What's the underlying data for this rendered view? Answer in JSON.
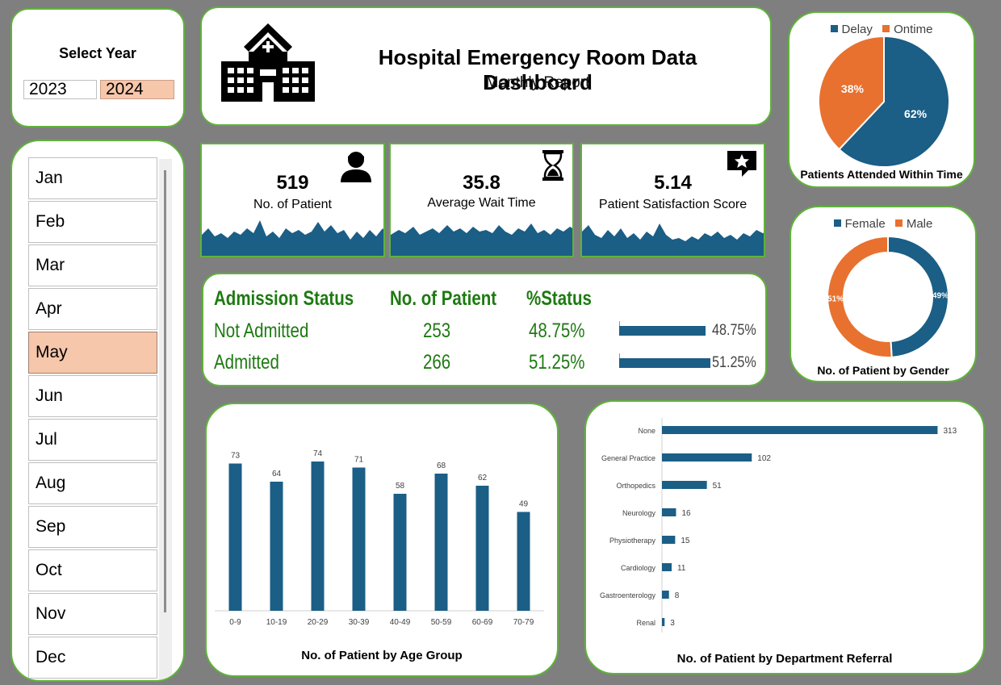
{
  "year_selector": {
    "title": "Select Year",
    "years": [
      "2023",
      "2024"
    ],
    "selected": "2024"
  },
  "month_selector": {
    "months": [
      "Jan",
      "Feb",
      "Mar",
      "Apr",
      "May",
      "Jun",
      "Jul",
      "Aug",
      "Sep",
      "Oct",
      "Nov",
      "Dec"
    ],
    "selected": "May"
  },
  "header": {
    "title": "Hospital Emergency Room Data Dashboard",
    "subtitle": "Monthly Report",
    "icon": "hospital-icon"
  },
  "kpis": {
    "patients": {
      "value": "519",
      "label": "No. of Patient",
      "icon": "patient-icon"
    },
    "wait": {
      "value": "35.8",
      "label": "Average Wait Time",
      "icon": "hourglass-icon"
    },
    "satisfaction": {
      "value": "5.14",
      "label": "Patient Satisfaction Score",
      "icon": "rating-star-icon"
    }
  },
  "admission": {
    "headers": [
      "Admission Status",
      "No. of Patient",
      "%Status"
    ],
    "rows": [
      {
        "status": "Not Admitted",
        "count": "253",
        "percent": "48.75%",
        "fraction": 0.4875
      },
      {
        "status": "Admitted",
        "count": "266",
        "percent": "51.25%",
        "fraction": 0.5125
      }
    ]
  },
  "colors": {
    "accent_blue": "#1b5e86",
    "accent_orange": "#e8712f",
    "card_border": "#5fb33a",
    "selected_fill": "#f7c7ab",
    "table_text": "#1e7a12"
  },
  "chart_data": [
    {
      "type": "pie",
      "title": "Patients Attended Within Time",
      "legend_position": "top",
      "categories": [
        "Delay",
        "Ontime"
      ],
      "values": [
        62,
        38
      ],
      "labels": [
        "62%",
        "38%"
      ],
      "colors": [
        "#1b5e86",
        "#e8712f"
      ]
    },
    {
      "type": "pie",
      "variant": "donut",
      "title": "No. of Patient by Gender",
      "legend_position": "top",
      "categories": [
        "Female",
        "Male"
      ],
      "values": [
        49,
        51
      ],
      "labels": [
        "49%",
        "51%"
      ],
      "colors": [
        "#1b5e86",
        "#e8712f"
      ]
    },
    {
      "type": "bar",
      "title": "No. of Patient by Age Group",
      "categories": [
        "0-9",
        "10-19",
        "20-29",
        "30-39",
        "40-49",
        "50-59",
        "60-69",
        "70-79"
      ],
      "values": [
        73,
        64,
        74,
        71,
        58,
        68,
        62,
        49
      ],
      "ylim": [
        0,
        80
      ],
      "grid": false,
      "color": "#1b5e86"
    },
    {
      "type": "bar",
      "orientation": "horizontal",
      "title": "No. of Patient by Department Referral",
      "categories": [
        "None",
        "General Practice",
        "Orthopedics",
        "Neurology",
        "Physiotherapy",
        "Cardiology",
        "Gastroenterology",
        "Renal"
      ],
      "values": [
        313,
        102,
        51,
        16,
        15,
        11,
        8,
        3
      ],
      "xlim": [
        0,
        330
      ],
      "grid": false,
      "color": "#1b5e86"
    }
  ]
}
